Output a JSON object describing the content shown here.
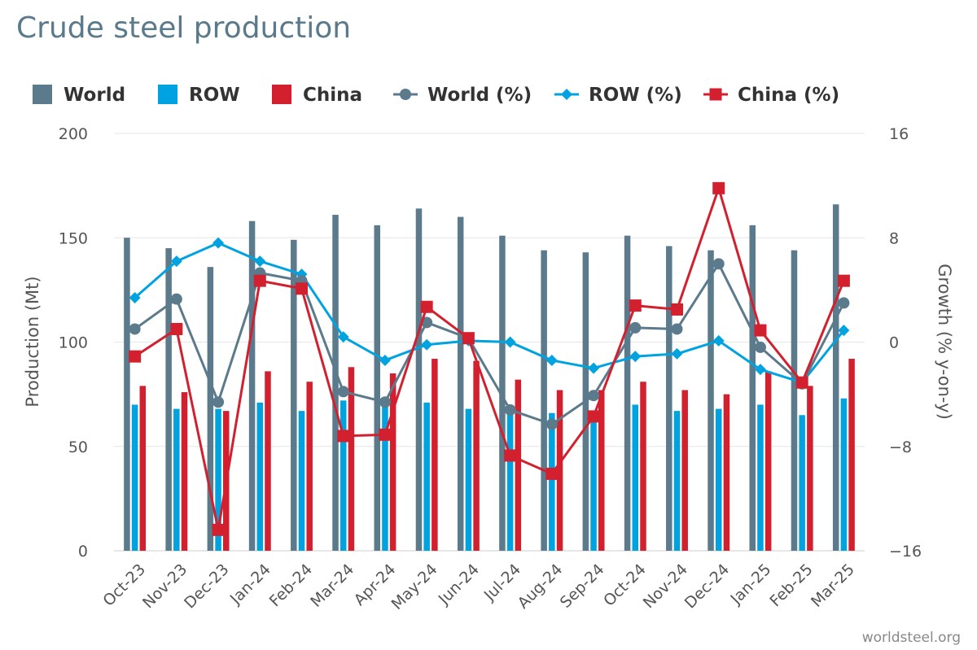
{
  "chart_data": {
    "type": "bar",
    "title": "Crude steel production",
    "xlabel": "",
    "ylabel": "Production (Mt)",
    "y2label": "Growth (% y-on-y)",
    "ylim": [
      0,
      200
    ],
    "y2lim": [
      -16,
      16
    ],
    "yticks": [
      "0",
      "50",
      "100",
      "150",
      "200"
    ],
    "y2ticks": [
      "−16",
      "−8",
      "0",
      "8",
      "16"
    ],
    "categories": [
      "Oct-23",
      "Nov-23",
      "Dec-23",
      "Jan-24",
      "Feb-24",
      "Mar-24",
      "Apr-24",
      "May-24",
      "Jun-24",
      "Jul-24",
      "Aug-24",
      "Sep-24",
      "Oct-24",
      "Nov-24",
      "Dec-24",
      "Jan-25",
      "Feb-25",
      "Mar-25"
    ],
    "series": [
      {
        "name": "World",
        "kind": "bar",
        "axis": "left",
        "color": "#5b7a8c",
        "values": [
          150,
          145,
          136,
          158,
          149,
          161,
          156,
          164,
          160,
          151,
          144,
          143,
          151,
          146,
          144,
          156,
          144,
          166
        ]
      },
      {
        "name": "ROW",
        "kind": "bar",
        "axis": "left",
        "color": "#00a3e0",
        "values": [
          70,
          68,
          68,
          71,
          67,
          72,
          70,
          71,
          68,
          68,
          66,
          66,
          70,
          67,
          68,
          70,
          65,
          73
        ]
      },
      {
        "name": "China",
        "kind": "bar",
        "axis": "left",
        "color": "#d2202f",
        "values": [
          79,
          76,
          67,
          86,
          81,
          88,
          85,
          92,
          91,
          82,
          77,
          77,
          81,
          77,
          75,
          86,
          79,
          92
        ]
      },
      {
        "name": "World (%)",
        "kind": "line",
        "axis": "right",
        "color": "#5b7a8c",
        "marker": "circle",
        "values": [
          1.0,
          3.3,
          -4.6,
          5.3,
          4.7,
          -3.8,
          -4.6,
          1.5,
          0.3,
          -5.2,
          -6.3,
          -4.1,
          1.1,
          1.0,
          6.0,
          -0.4,
          -3.2,
          3.0
        ]
      },
      {
        "name": "ROW (%)",
        "kind": "line",
        "axis": "right",
        "color": "#00a3e0",
        "marker": "diamond",
        "values": [
          3.4,
          6.2,
          7.6,
          6.2,
          5.2,
          0.4,
          -1.4,
          -0.2,
          0.1,
          0.0,
          -1.4,
          -2.0,
          -1.1,
          -0.9,
          0.1,
          -2.1,
          -3.1,
          0.9
        ]
      },
      {
        "name": "China (%)",
        "kind": "line",
        "axis": "right",
        "color": "#d2202f",
        "marker": "square",
        "values": [
          -1.1,
          1.0,
          -14.4,
          4.7,
          4.1,
          -7.2,
          -7.1,
          2.7,
          0.3,
          -8.7,
          -10.1,
          -5.7,
          2.8,
          2.5,
          11.8,
          0.9,
          -3.1,
          4.7
        ]
      }
    ],
    "legend_position": "top",
    "grid": true
  },
  "source": "worldsteel.org"
}
